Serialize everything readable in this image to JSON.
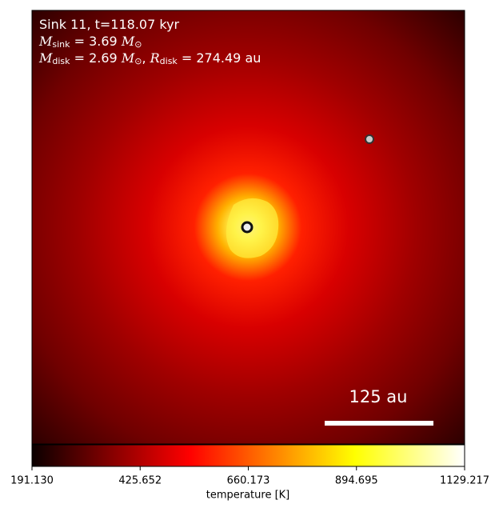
{
  "chart_data": {
    "type": "image",
    "annotation_lines": [
      [
        "Sink 11, t=118.07 kyr"
      ],
      [
        {
          "math": "M"
        },
        {
          "sub": "sink"
        },
        " = 3.69 ",
        {
          "math": "M"
        },
        {
          "sub": "⊙"
        }
      ],
      [
        {
          "math": "M"
        },
        {
          "sub": "disk"
        },
        " = 2.69 ",
        {
          "math": "M"
        },
        {
          "sub": "⊙"
        },
        ", ",
        {
          "math": "R"
        },
        {
          "sub": "disk"
        },
        " = 274.49 au"
      ]
    ],
    "scale_bar_label": "125 au",
    "colorbar": {
      "label": "temperature [K]",
      "colormap": "hot",
      "lim": [
        191.13,
        1129.217
      ],
      "ticks": [
        {
          "value": 191.13,
          "label": "191.130"
        },
        {
          "value": 425.652,
          "label": "425.652"
        },
        {
          "value": 660.173,
          "label": "660.173"
        },
        {
          "value": 894.695,
          "label": "894.695"
        },
        {
          "value": 1129.217,
          "label": "1129.217"
        }
      ]
    }
  }
}
